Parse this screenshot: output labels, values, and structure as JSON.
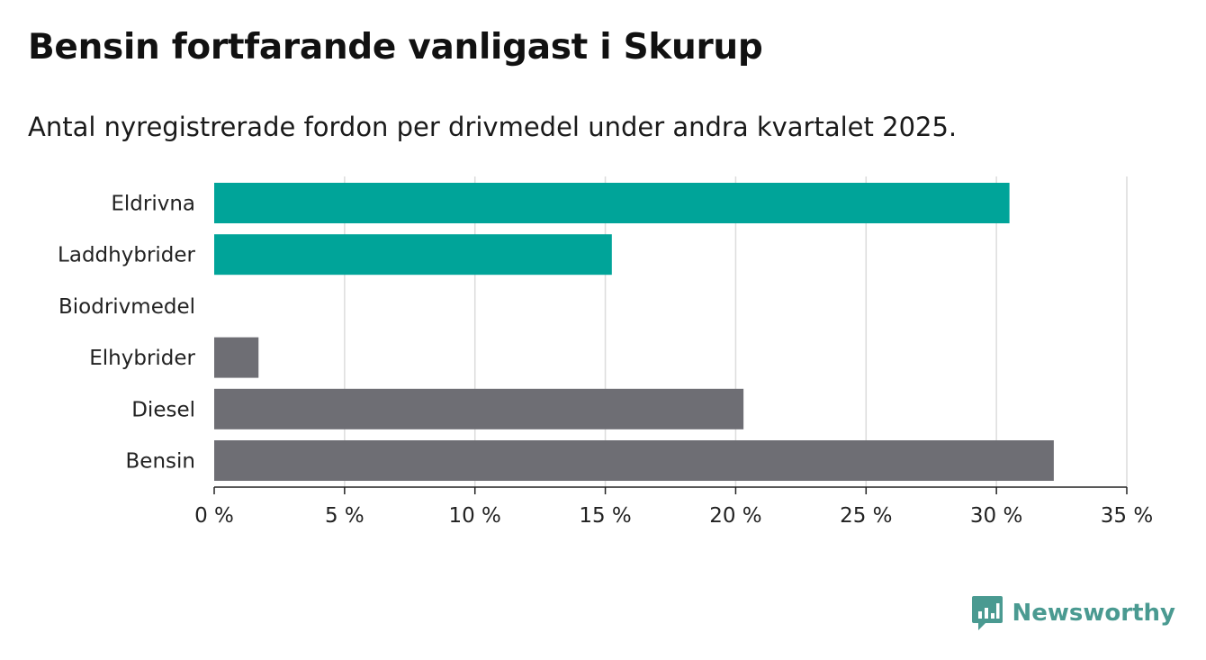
{
  "header": {
    "title": "Bensin fortfarande vanligast i Skurup",
    "subtitle": "Antal nyregistrerade fordon per drivmedel under andra kvartalet 2025."
  },
  "brand": {
    "name": "Newsworthy",
    "icon": "newsworthy-logo-icon",
    "color": "#4a9a91"
  },
  "chart_data": {
    "type": "bar",
    "orientation": "horizontal",
    "categories": [
      "Eldrivna",
      "Laddhybrider",
      "Biodrivmedel",
      "Elhybrider",
      "Diesel",
      "Bensin"
    ],
    "values": [
      30.5,
      15.25,
      0,
      1.7,
      20.3,
      32.2
    ],
    "colors": [
      "#00a499",
      "#00a499",
      "#00a499",
      "#6e6e74",
      "#6e6e74",
      "#6e6e74"
    ],
    "xlim": [
      0,
      35
    ],
    "xticks": [
      0,
      5,
      10,
      15,
      20,
      25,
      30,
      35
    ],
    "xtick_labels": [
      "0 %",
      "5 %",
      "10 %",
      "15 %",
      "20 %",
      "25 %",
      "30 %",
      "35 %"
    ],
    "grid": true,
    "legend": "none"
  }
}
